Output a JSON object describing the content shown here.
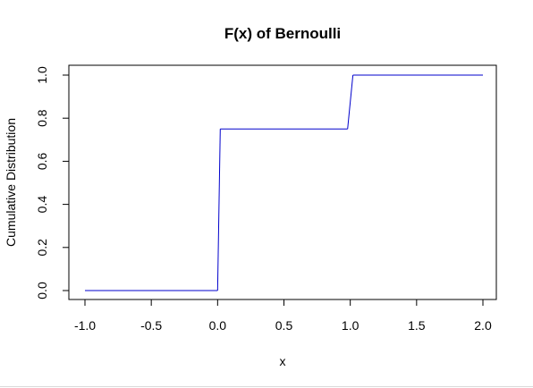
{
  "chart_data": {
    "type": "line",
    "title": "F(x) of Bernoulli",
    "xlabel": "x",
    "ylabel": "Cumulative Distribution",
    "xlim": [
      -1.0,
      2.0
    ],
    "ylim": [
      0.0,
      1.0
    ],
    "xticks": [
      -1.0,
      -0.5,
      0.0,
      0.5,
      1.0,
      1.5,
      2.0
    ],
    "xtick_labels": [
      "-1.0",
      "-0.5",
      "0.0",
      "0.5",
      "1.0",
      "1.5",
      "2.0"
    ],
    "yticks": [
      0.0,
      0.2,
      0.4,
      0.6,
      0.8,
      1.0
    ],
    "ytick_labels": [
      "0.0",
      "0.2",
      "0.4",
      "0.6",
      "0.8",
      "1.0"
    ],
    "grid": false,
    "series": [
      {
        "name": "F(x)",
        "color": "#0000cc",
        "x": [
          -1.0,
          0.0,
          0.02,
          0.98,
          1.02,
          2.0
        ],
        "y": [
          0.0,
          0.0,
          0.75,
          0.75,
          1.0,
          1.0
        ]
      }
    ]
  }
}
